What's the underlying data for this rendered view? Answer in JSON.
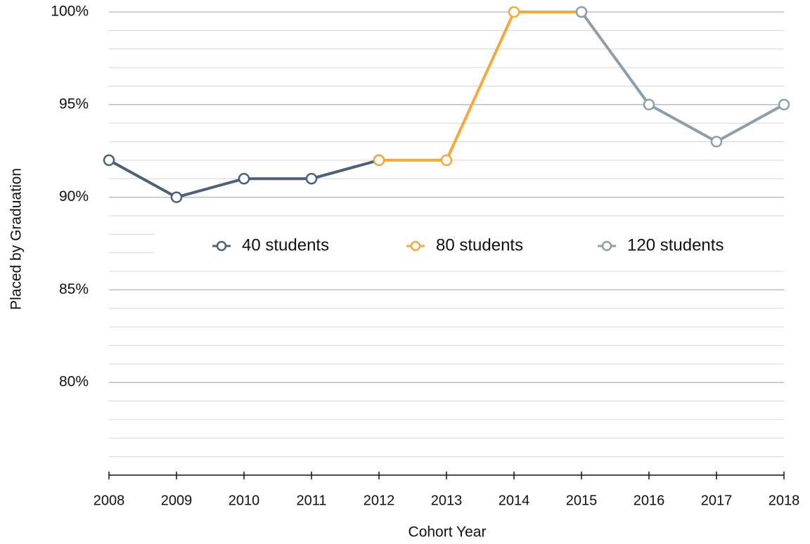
{
  "chart_data": {
    "type": "line",
    "xlabel": "Cohort Year",
    "ylabel": "Placed by Graduation",
    "categories": [
      "2008",
      "2009",
      "2010",
      "2011",
      "2012",
      "2013",
      "2014",
      "2015",
      "2016",
      "2017",
      "2018"
    ],
    "series": [
      {
        "name": "40 students",
        "color": "#4a6178",
        "values": [
          92,
          90,
          91,
          91,
          92,
          null,
          null,
          null,
          null,
          null,
          null
        ]
      },
      {
        "name": "80 students",
        "color": "#f5a93b",
        "values": [
          null,
          null,
          null,
          null,
          92,
          92,
          100,
          100,
          null,
          null,
          null
        ]
      },
      {
        "name": "120 students",
        "color": "#8e9ea9",
        "values": [
          null,
          null,
          null,
          null,
          null,
          null,
          null,
          100,
          95,
          93,
          95
        ]
      }
    ],
    "ylim": [
      75,
      100
    ],
    "yticks": [
      {
        "value": 80,
        "label": "80%"
      },
      {
        "value": 85,
        "label": "85%"
      },
      {
        "value": 90,
        "label": "90%"
      },
      {
        "value": 95,
        "label": "95%"
      },
      {
        "value": 100,
        "label": "100%"
      }
    ],
    "minor_yticks": [
      76,
      77,
      78,
      79,
      81,
      82,
      83,
      84,
      86,
      87,
      88,
      89,
      91,
      92,
      93,
      94,
      96,
      97,
      98,
      99
    ],
    "grid": true,
    "legend": "center"
  }
}
